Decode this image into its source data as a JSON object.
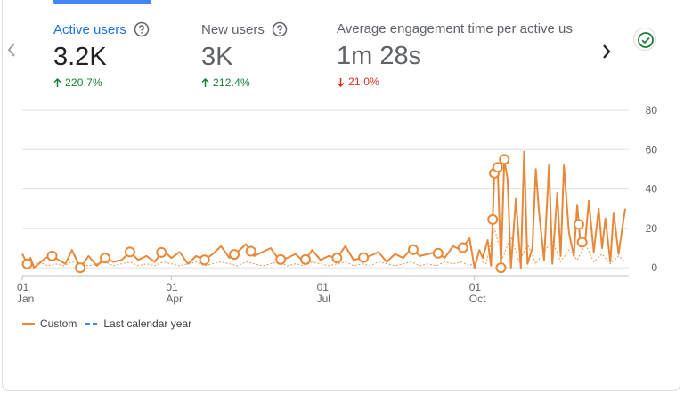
{
  "metrics": [
    {
      "label": "Active users",
      "value": "3.2K",
      "change": "220.7%",
      "direction": "up"
    },
    {
      "label": "New users",
      "value": "3K",
      "change": "212.4%",
      "direction": "up"
    },
    {
      "label": "Average engagement time per active us",
      "value": "1m 28s",
      "change": "21.0%",
      "direction": "down"
    }
  ],
  "legend": {
    "custom": "Custom",
    "previous": "Last calendar year"
  },
  "colors": {
    "custom": "#e8883a",
    "previous": "#4285f4",
    "accent": "#1a73e8",
    "up": "#188038",
    "down": "#d93025",
    "grid": "#e0e0e0",
    "status": "#188038"
  },
  "chart_data": {
    "type": "line",
    "x_ticks": [
      {
        "day": "01",
        "month": "Jan",
        "x": 0
      },
      {
        "day": "01",
        "month": "Apr",
        "x": 90
      },
      {
        "day": "01",
        "month": "Jul",
        "x": 181
      },
      {
        "day": "01",
        "month": "Oct",
        "x": 273
      }
    ],
    "y_ticks": [
      0,
      20,
      40,
      60,
      80
    ],
    "ylim": [
      -4,
      80
    ],
    "xlim": [
      0,
      364
    ],
    "series": [
      {
        "name": "Custom",
        "style": "solid",
        "x": [
          0,
          3,
          5,
          7,
          10,
          14,
          18,
          22,
          26,
          30,
          35,
          40,
          45,
          50,
          55,
          60,
          65,
          70,
          75,
          80,
          85,
          90,
          95,
          100,
          105,
          110,
          115,
          120,
          125,
          130,
          135,
          140,
          145,
          150,
          155,
          160,
          165,
          170,
          175,
          180,
          185,
          190,
          195,
          200,
          205,
          210,
          215,
          220,
          225,
          230,
          235,
          240,
          245,
          250,
          255,
          260,
          265,
          270,
          273,
          276,
          278,
          281,
          283,
          285,
          287,
          289,
          291,
          293,
          295,
          298,
          301,
          303,
          305,
          308,
          310,
          312,
          315,
          318,
          320,
          323,
          325,
          327,
          330,
          333,
          335,
          337,
          340,
          342,
          345,
          348,
          350,
          352,
          355,
          357,
          360,
          362,
          364
        ],
        "values": [
          7,
          2,
          5,
          0,
          2,
          5,
          6,
          4,
          2,
          9,
          0,
          6,
          1,
          5,
          3,
          4,
          8,
          4,
          6,
          3,
          9,
          5,
          8,
          2,
          6,
          4,
          7,
          11,
          5,
          8,
          12,
          6,
          8,
          10,
          4,
          5,
          7,
          3,
          9,
          4,
          6,
          5,
          11,
          4,
          5,
          6,
          8,
          3,
          7,
          5,
          10,
          6,
          7,
          8,
          5,
          11,
          9,
          15,
          0,
          9,
          5,
          14,
          1,
          48,
          51,
          0,
          55,
          45,
          0,
          35,
          0,
          59,
          2,
          10,
          50,
          28,
          4,
          52,
          2,
          38,
          6,
          52,
          18,
          6,
          32,
          12,
          15,
          34,
          8,
          30,
          10,
          25,
          3,
          28,
          7,
          19,
          30
        ]
      },
      {
        "name": "Last calendar year",
        "style": "dashed",
        "x": [
          0,
          5,
          10,
          15,
          20,
          25,
          30,
          35,
          40,
          45,
          50,
          55,
          60,
          65,
          70,
          75,
          80,
          85,
          90,
          95,
          100,
          105,
          110,
          115,
          120,
          125,
          130,
          135,
          140,
          145,
          150,
          155,
          160,
          165,
          170,
          175,
          180,
          185,
          190,
          195,
          200,
          205,
          210,
          215,
          220,
          225,
          230,
          235,
          240,
          245,
          250,
          255,
          260,
          265,
          270,
          275,
          280,
          285,
          290,
          295,
          300,
          305,
          310,
          315,
          320,
          325,
          330,
          335,
          340,
          345,
          350,
          355,
          360,
          364
        ],
        "values": [
          2,
          1,
          3,
          1,
          2,
          1,
          3,
          2,
          1,
          2,
          3,
          1,
          2,
          3,
          1,
          2,
          1,
          3,
          2,
          1,
          2,
          3,
          1,
          2,
          3,
          2,
          1,
          3,
          2,
          1,
          2,
          3,
          1,
          2,
          1,
          3,
          2,
          1,
          2,
          3,
          1,
          2,
          1,
          3,
          2,
          1,
          2,
          3,
          1,
          2,
          1,
          3,
          2,
          3,
          1,
          4,
          2,
          20,
          5,
          16,
          3,
          12,
          2,
          8,
          14,
          3,
          9,
          4,
          12,
          3,
          7,
          2,
          6,
          3
        ]
      }
    ],
    "annotations_x": [
      3,
      18,
      35,
      50,
      65,
      84,
      110,
      128,
      138,
      156,
      171,
      190,
      206,
      236,
      251,
      266,
      284,
      285,
      287,
      289,
      291,
      336,
      338
    ]
  }
}
